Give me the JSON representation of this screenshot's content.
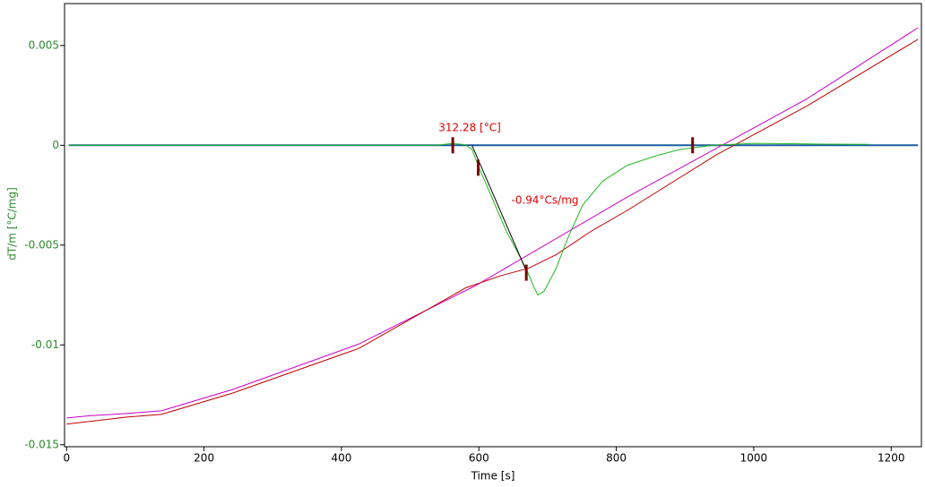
{
  "chart_data": {
    "type": "line",
    "x_label": "Time [s]",
    "y_label": "dT/m  [°C/mg]",
    "xlim": [
      -3,
      1244
    ],
    "ylim": [
      -0.0151,
      0.0071
    ],
    "xticks": [
      0,
      200,
      400,
      600,
      800,
      1000,
      1200
    ],
    "yticks": [
      0.005,
      0,
      -0.005,
      -0.01,
      -0.015
    ],
    "series": [
      {
        "color": "#1a5fa0",
        "x": [
          3,
          1239
        ],
        "values": [
          0,
          0
        ]
      },
      {
        "color": "#cc00cc",
        "x": [
          0,
          34,
          85,
          138,
          242,
          425,
          594,
          816,
          1077,
          1239
        ],
        "values": [
          -0.01366,
          -0.01355,
          -0.01344,
          -0.0133,
          -0.01223,
          -0.00996,
          -0.00705,
          -0.00259,
          0.00232,
          0.00589
        ]
      },
      {
        "color": "#c00000",
        "x": [
          0,
          86,
          138,
          242,
          425,
          581,
          633,
          672,
          712,
          764,
          816,
          947,
          1077,
          1239
        ],
        "values": [
          -0.01397,
          -0.01362,
          -0.01348,
          -0.01241,
          -0.01018,
          -0.00714,
          -0.00652,
          -0.00616,
          -0.00549,
          -0.00429,
          -0.00326,
          -0.00045,
          0.00196,
          0.00531
        ]
      },
      {
        "color": "#22b822",
        "x": [
          3,
          540,
          560,
          580,
          590,
          600,
          620,
          640,
          660,
          669,
          680,
          686,
          695,
          712,
          730,
          751,
          780,
          816,
          860,
          894,
          941,
          1000,
          1100,
          1168
        ],
        "values": [
          0,
          0,
          9e-05,
          3e-05,
          -0.0002,
          -0.0011,
          -0.0027,
          -0.0043,
          -0.0056,
          -0.0062,
          -0.0071,
          -0.0075,
          -0.0073,
          -0.0062,
          -0.0046,
          -0.003,
          -0.0018,
          -0.001,
          -0.0005,
          -0.0002,
          0,
          0.0001,
          6e-05,
          5e-05
        ]
      },
      {
        "color": "#000000",
        "x": [
          590,
          668
        ],
        "values": [
          0,
          -0.00621
        ]
      }
    ],
    "markers": {
      "color": "#7a0000",
      "x": [
        562,
        599,
        669,
        911
      ],
      "values": [
        0,
        -0.00112,
        -0.00638,
        0
      ]
    },
    "annotations": [
      {
        "text": "312.28 [°C]",
        "color": "#e00000"
      },
      {
        "text": "-0.94°Cs/mg",
        "color": "#e00000"
      }
    ]
  }
}
